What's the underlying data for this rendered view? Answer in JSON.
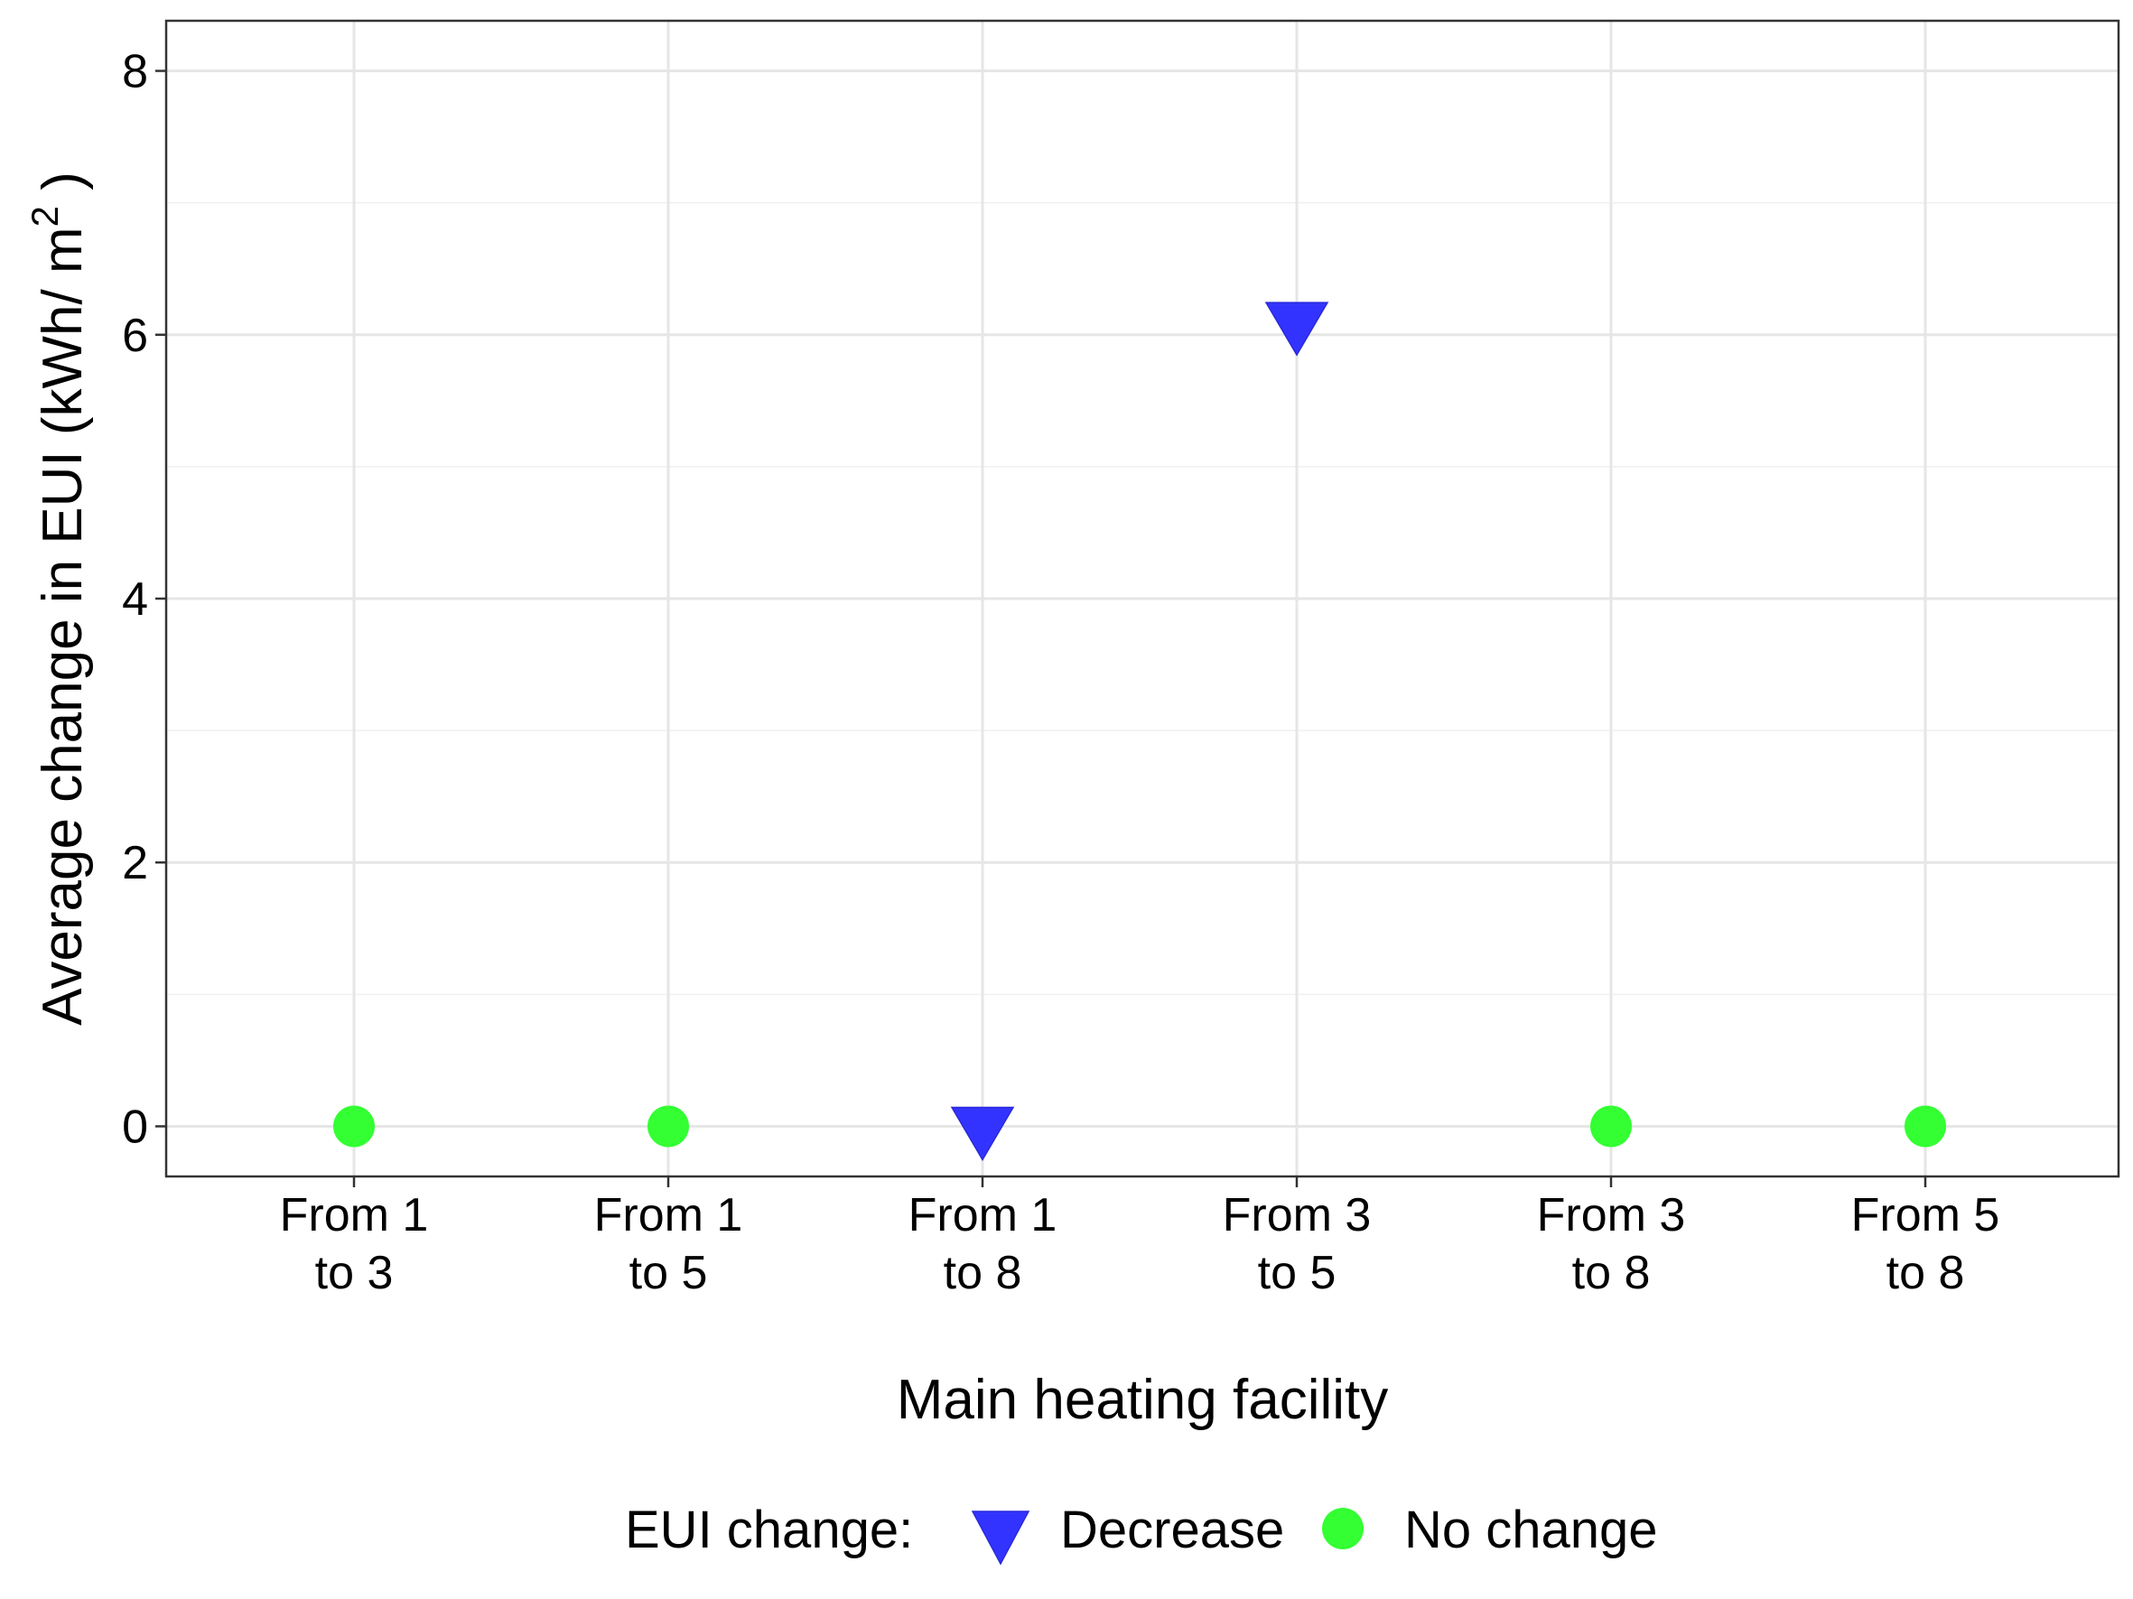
{
  "chart_data": {
    "type": "scatter",
    "xlabel": "Main heating facility",
    "ylabel_main": "Average change in EUI (kWh/ m",
    "ylabel_sup": "2",
    "ylabel_end": " )",
    "categories": [
      {
        "line1": "From 1",
        "line2": "to 3"
      },
      {
        "line1": "From 1",
        "line2": "to 5"
      },
      {
        "line1": "From 1",
        "line2": "to 8"
      },
      {
        "line1": "From 3",
        "line2": "to 5"
      },
      {
        "line1": "From 3",
        "line2": "to 8"
      },
      {
        "line1": "From 5",
        "line2": "to 8"
      }
    ],
    "points": [
      {
        "category": 0,
        "y": 0,
        "group": "No change"
      },
      {
        "category": 1,
        "y": 0,
        "group": "No change"
      },
      {
        "category": 2,
        "y": 0,
        "group": "Decrease"
      },
      {
        "category": 3,
        "y": 6.1,
        "group": "Decrease"
      },
      {
        "category": 4,
        "y": 0,
        "group": "No change"
      },
      {
        "category": 5,
        "y": 0,
        "group": "No change"
      }
    ],
    "ylim": [
      -0.38,
      8.38
    ],
    "yticks": [
      0,
      2,
      4,
      6,
      8
    ],
    "grid": true,
    "legend": {
      "title": "EUI change:",
      "position": "bottom",
      "entries": [
        {
          "label": "Decrease",
          "shape": "triangle-down",
          "color": "#3333ff"
        },
        {
          "label": "No change",
          "shape": "circle",
          "color": "#33ff33"
        }
      ]
    }
  }
}
